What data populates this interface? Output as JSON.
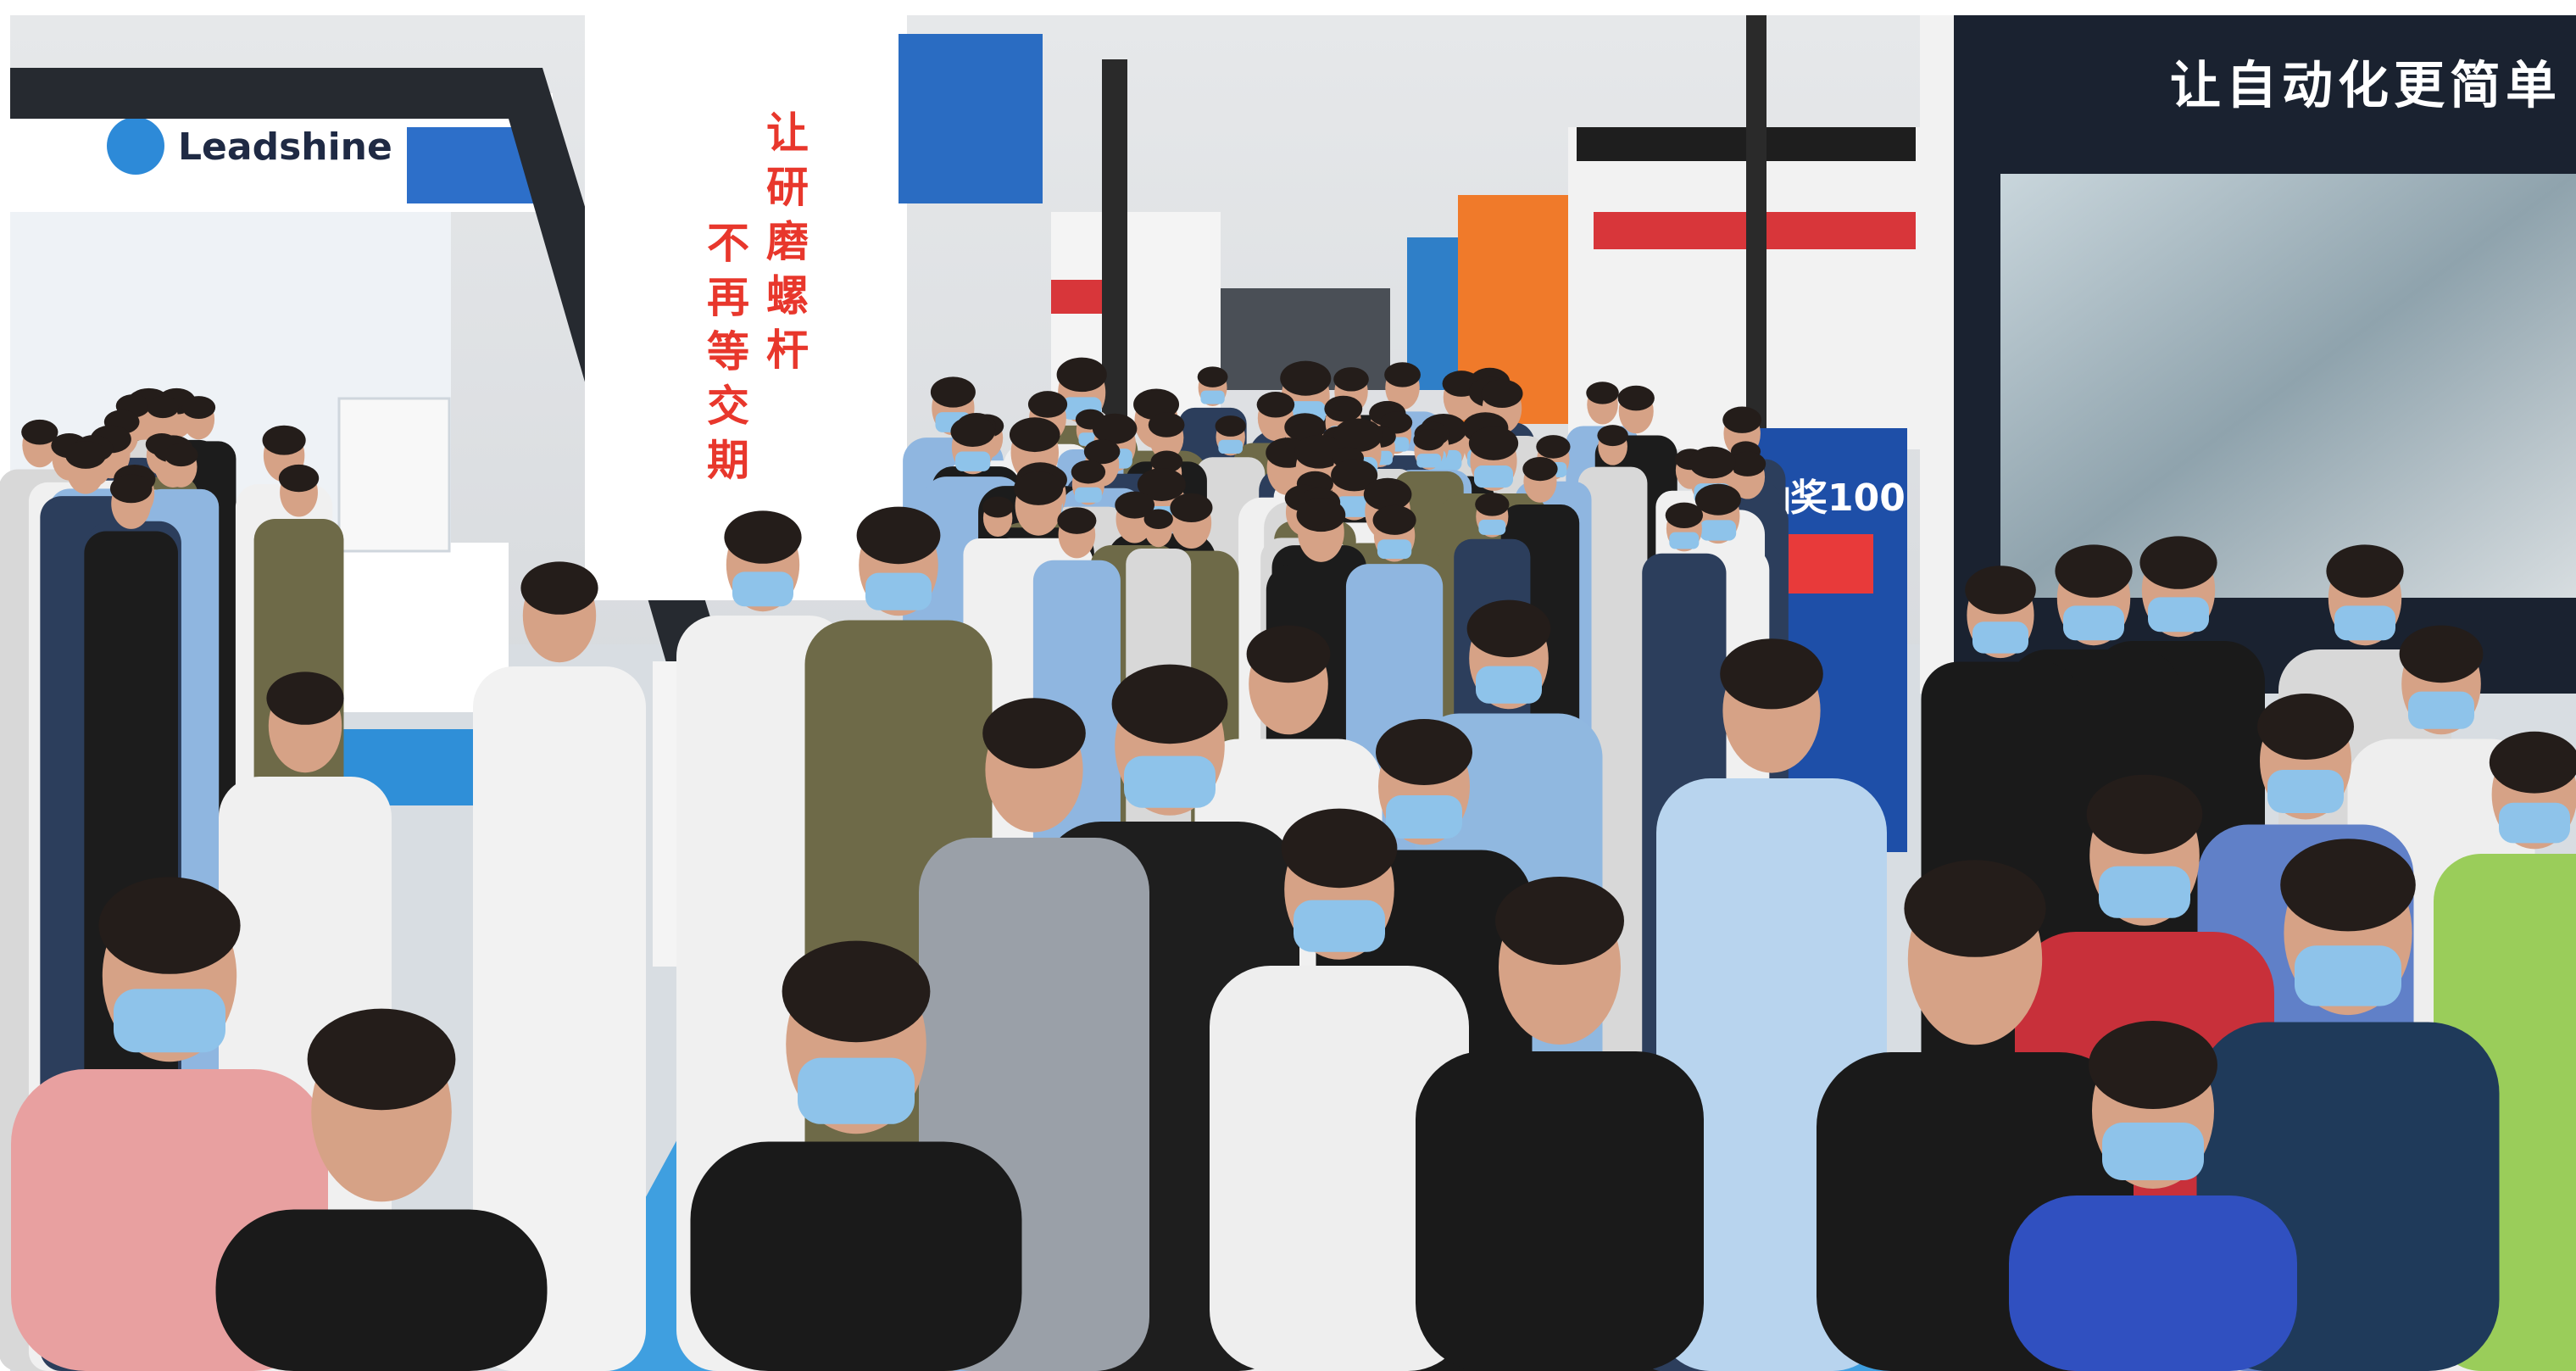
{
  "signs": {
    "left_booth": "Leadshine",
    "pillar_slogan": [
      "让研磨螺杆",
      "不再等交期"
    ],
    "right_booth": "让自动化更简单",
    "standee": "抽奖100"
  }
}
